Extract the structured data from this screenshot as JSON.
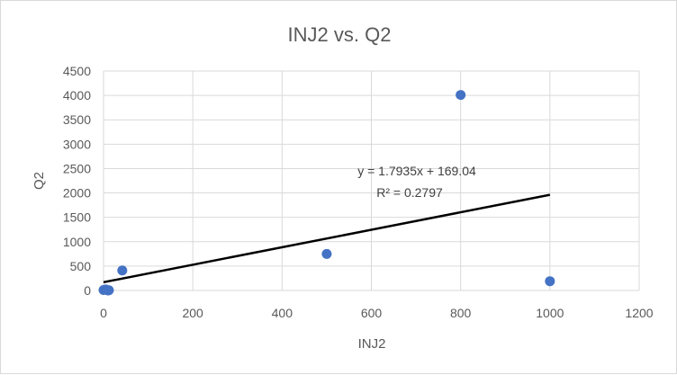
{
  "chart_data": {
    "type": "scatter",
    "title": "INJ2 vs. Q2",
    "xlabel": "INJ2",
    "ylabel": "Q2",
    "xlim": [
      0,
      1200
    ],
    "ylim": [
      0,
      4500
    ],
    "xticks": [
      0,
      200,
      400,
      600,
      800,
      1000,
      1200
    ],
    "yticks": [
      0,
      500,
      1000,
      1500,
      2000,
      2500,
      3000,
      3500,
      4000,
      4500
    ],
    "grid": true,
    "points": [
      {
        "x": 0,
        "y": 10
      },
      {
        "x": 5,
        "y": 20
      },
      {
        "x": 10,
        "y": 0
      },
      {
        "x": 12,
        "y": 5
      },
      {
        "x": 42,
        "y": 410
      },
      {
        "x": 500,
        "y": 750
      },
      {
        "x": 800,
        "y": 4010
      },
      {
        "x": 1000,
        "y": 190
      }
    ],
    "trendline": {
      "slope": 1.7935,
      "intercept": 169.04,
      "x_range": [
        0,
        1000
      ],
      "equation": "y = 1.7935x + 169.04",
      "r_squared": "R² = 0.2797"
    },
    "colors": {
      "points": "#4472c4",
      "trendline": "#000000"
    }
  }
}
